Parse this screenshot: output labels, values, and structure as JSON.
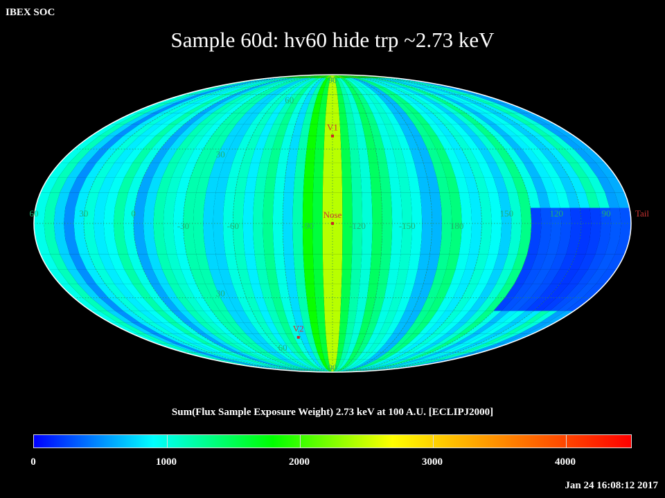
{
  "header": {
    "org": "IBEX SOC",
    "title": "Sample 60d: hv60 hide trp ~2.73 keV"
  },
  "colors": {
    "background": "#000000",
    "outline": "#ffffff",
    "graticule": "#2e8b57",
    "grid_label": "#20b070",
    "marker": "#cc2222",
    "marker_label": "#cc3333"
  },
  "map": {
    "projection": "Mollweide (Hammer-Aitoff style), ecliptic J2000",
    "center_label": "Nose",
    "lat_labels": [
      {
        "lat": 90,
        "text": "90"
      },
      {
        "lat": 60,
        "text": "60"
      },
      {
        "lat": 30,
        "text": "30"
      },
      {
        "lat": -30,
        "text": "30"
      },
      {
        "lat": -60,
        "text": "60"
      },
      {
        "lat": -90,
        "text": "90"
      }
    ],
    "lon_labels": [
      {
        "offset": -180,
        "text": "60"
      },
      {
        "offset": -150,
        "text": "30"
      },
      {
        "offset": -120,
        "text": "0"
      },
      {
        "offset": -90,
        "text": "-30"
      },
      {
        "offset": -60,
        "text": "-60"
      },
      {
        "offset": -15,
        "text": "-90"
      },
      {
        "offset": 15,
        "text": "-120"
      },
      {
        "offset": 45,
        "text": "-150"
      },
      {
        "offset": 75,
        "text": "180"
      },
      {
        "offset": 105,
        "text": "150"
      },
      {
        "offset": 135,
        "text": "120"
      },
      {
        "offset": 165,
        "text": "90"
      }
    ],
    "markers": [
      {
        "name": "V1",
        "label": "V1",
        "offset": 0,
        "lat": 36
      },
      {
        "name": "Nose",
        "label": "Nose",
        "offset": 0,
        "lat": 0
      },
      {
        "name": "V2",
        "label": "V2",
        "offset": -32,
        "lat": -50
      },
      {
        "name": "Tail",
        "label": "Tail",
        "offset": 180,
        "lat": 0
      }
    ]
  },
  "colorbar": {
    "title": "Sum(Flux Sample Exposure Weight)  2.73 keV at 100 A.U. [ECLIPJ2000]",
    "min": 0,
    "max": 4500,
    "ticks": [
      {
        "value": 0,
        "label": "0"
      },
      {
        "value": 1000,
        "label": "1000"
      },
      {
        "value": 2000,
        "label": "2000"
      },
      {
        "value": 3000,
        "label": "3000"
      },
      {
        "value": 4000,
        "label": "4000"
      }
    ],
    "gradient_stops": [
      "#0000ff",
      "#00ffff",
      "#00ff00",
      "#ffff00",
      "#ff8000",
      "#ff0000"
    ]
  },
  "footer": {
    "timestamp": "Jan 24 16:08:12 2017"
  }
}
